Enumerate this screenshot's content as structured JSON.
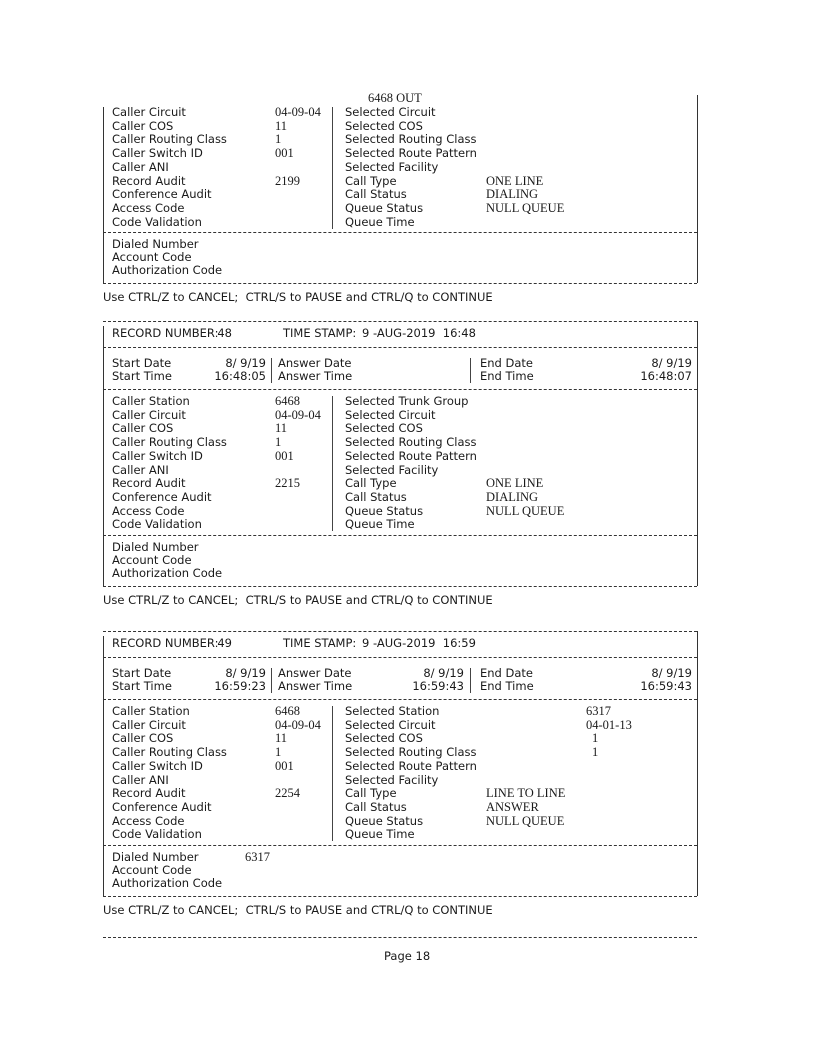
{
  "records": [
    {
      "partial": true,
      "overflow_value": "6468 OUT",
      "caller": [
        {
          "label": "Caller Circuit",
          "value": "04-09-04"
        },
        {
          "label": "Caller COS",
          "value": "11"
        },
        {
          "label": "Caller Routing Class",
          "value": "1"
        },
        {
          "label": "Caller Switch ID",
          "value": "001"
        },
        {
          "label": "Caller ANI",
          "value": ""
        },
        {
          "label": "Record Audit",
          "value": "2199"
        },
        {
          "label": "Conference Audit",
          "value": ""
        },
        {
          "label": "Access Code",
          "value": ""
        },
        {
          "label": "Code Validation",
          "value": ""
        }
      ],
      "selected": [
        {
          "label": "Selected Circuit",
          "value": ""
        },
        {
          "label": "Selected COS",
          "value": ""
        },
        {
          "label": "Selected Routing Class",
          "value": ""
        },
        {
          "label": "Selected Route Pattern",
          "value": ""
        },
        {
          "label": "Selected Facility",
          "value": ""
        },
        {
          "label": "Call Type",
          "value": "ONE LINE"
        },
        {
          "label": "Call Status",
          "value": "DIALING"
        },
        {
          "label": "Queue Status",
          "value": "NULL QUEUE"
        },
        {
          "label": "Queue Time",
          "value": ""
        }
      ],
      "dialed": [
        {
          "label": "Dialed Number",
          "value": ""
        },
        {
          "label": "Account Code",
          "value": ""
        },
        {
          "label": "Authorization Code",
          "value": ""
        }
      ]
    },
    {
      "record_number_label": "RECORD NUMBER:",
      "record_number": "48",
      "time_stamp_label": "TIME STAMP:",
      "time_stamp": "9 -AUG-2019  16:48",
      "start_date_label": "Start Date",
      "start_date": "8/ 9/19",
      "start_time_label": "Start Time",
      "start_time": "16:48:05",
      "answer_date_label": "Answer Date",
      "answer_date": "",
      "answer_time_label": "Answer Time",
      "answer_time": "",
      "end_date_label": "End Date",
      "end_date": "8/ 9/19",
      "end_time_label": "End Time",
      "end_time": "16:48:07",
      "caller": [
        {
          "label": "Caller Station",
          "value": "6468"
        },
        {
          "label": "Caller Circuit",
          "value": "04-09-04"
        },
        {
          "label": "Caller COS",
          "value": "11"
        },
        {
          "label": "Caller Routing Class",
          "value": "1"
        },
        {
          "label": "Caller Switch ID",
          "value": "001"
        },
        {
          "label": "Caller ANI",
          "value": ""
        },
        {
          "label": "Record Audit",
          "value": "2215"
        },
        {
          "label": "Conference Audit",
          "value": ""
        },
        {
          "label": "Access Code",
          "value": ""
        },
        {
          "label": "Code Validation",
          "value": ""
        }
      ],
      "selected": [
        {
          "label": "Selected Trunk Group",
          "value": ""
        },
        {
          "label": "Selected Circuit",
          "value": ""
        },
        {
          "label": "Selected COS",
          "value": ""
        },
        {
          "label": "Selected Routing Class",
          "value": ""
        },
        {
          "label": "Selected Route Pattern",
          "value": ""
        },
        {
          "label": "Selected Facility",
          "value": ""
        },
        {
          "label": "Call Type",
          "value": "ONE LINE"
        },
        {
          "label": "Call Status",
          "value": "DIALING"
        },
        {
          "label": "Queue Status",
          "value": "NULL QUEUE"
        },
        {
          "label": "Queue Time",
          "value": ""
        }
      ],
      "dialed": [
        {
          "label": "Dialed Number",
          "value": ""
        },
        {
          "label": "Account Code",
          "value": ""
        },
        {
          "label": "Authorization Code",
          "value": ""
        }
      ]
    },
    {
      "record_number_label": "RECORD NUMBER:",
      "record_number": "49",
      "time_stamp_label": "TIME STAMP:",
      "time_stamp": "9 -AUG-2019  16:59",
      "start_date_label": "Start Date",
      "start_date": "8/ 9/19",
      "start_time_label": "Start Time",
      "start_time": "16:59:23",
      "answer_date_label": "Answer Date",
      "answer_date": "8/ 9/19",
      "answer_time_label": "Answer Time",
      "answer_time": "16:59:43",
      "end_date_label": "End Date",
      "end_date": "8/ 9/19",
      "end_time_label": "End Time",
      "end_time": "16:59:43",
      "caller": [
        {
          "label": "Caller Station",
          "value": "6468"
        },
        {
          "label": "Caller Circuit",
          "value": "04-09-04"
        },
        {
          "label": "Caller COS",
          "value": "11"
        },
        {
          "label": "Caller Routing Class",
          "value": "1"
        },
        {
          "label": "Caller Switch ID",
          "value": "001"
        },
        {
          "label": "Caller ANI",
          "value": ""
        },
        {
          "label": "Record Audit",
          "value": "2254"
        },
        {
          "label": "Conference Audit",
          "value": ""
        },
        {
          "label": "Access Code",
          "value": ""
        },
        {
          "label": "Code Validation",
          "value": ""
        }
      ],
      "selected": [
        {
          "label": "Selected Station",
          "value": "6317"
        },
        {
          "label": "Selected Circuit",
          "value": "04-01-13"
        },
        {
          "label": "Selected COS",
          "value": "1"
        },
        {
          "label": "Selected Routing Class",
          "value": "1"
        },
        {
          "label": "Selected Route Pattern",
          "value": ""
        },
        {
          "label": "Selected Facility",
          "value": ""
        },
        {
          "label": "Call Type",
          "value": "LINE TO LINE"
        },
        {
          "label": "Call Status",
          "value": "ANSWER"
        },
        {
          "label": "Queue Status",
          "value": "NULL QUEUE"
        },
        {
          "label": "Queue Time",
          "value": ""
        }
      ],
      "dialed": [
        {
          "label": "Dialed Number",
          "value": "6317"
        },
        {
          "label": "Account Code",
          "value": ""
        },
        {
          "label": "Authorization Code",
          "value": ""
        }
      ]
    }
  ],
  "control_hint": "Use CTRL/Z to CANCEL;  CTRL/S to PAUSE and CTRL/Q to CONTINUE",
  "footer": {
    "page_label": "Page 18"
  }
}
